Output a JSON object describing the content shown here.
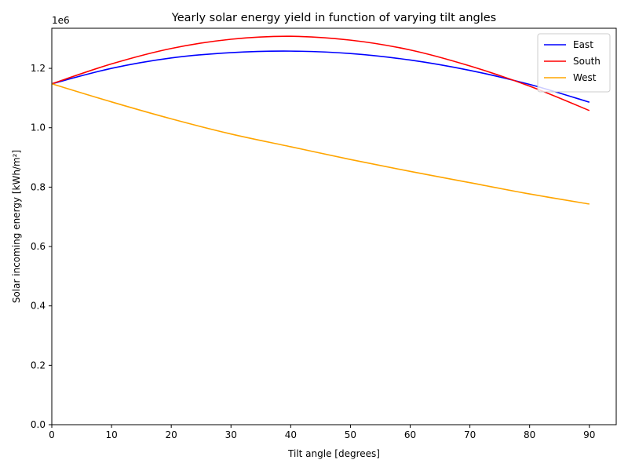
{
  "chart_data": {
    "type": "line",
    "title": "Yearly solar energy yield in function of varying tilt angles",
    "xlabel": "Tilt angle [degrees]",
    "ylabel": "Solar incoming energy [kWh/m²]",
    "y_offset_label": "1e6",
    "xlim": [
      0,
      94.5
    ],
    "ylim": [
      0,
      1335000
    ],
    "x_ticks": [
      0,
      10,
      20,
      30,
      40,
      50,
      60,
      70,
      80,
      90
    ],
    "x_tick_labels": [
      "0",
      "10",
      "20",
      "30",
      "40",
      "50",
      "60",
      "70",
      "80",
      "90"
    ],
    "y_ticks": [
      0,
      200000,
      400000,
      600000,
      800000,
      1000000,
      1200000
    ],
    "y_tick_labels": [
      "0.0",
      "0.2",
      "0.4",
      "0.6",
      "0.8",
      "1.0",
      "1.2"
    ],
    "grid": false,
    "legend_position": "top-right",
    "x": [
      0,
      10,
      20,
      30,
      40,
      50,
      60,
      70,
      80,
      90
    ],
    "series": [
      {
        "name": "East",
        "color": "#0000ff",
        "values": [
          1148000,
          1200000,
          1235000,
          1253000,
          1258000,
          1250000,
          1228000,
          1193000,
          1146000,
          1086000
        ]
      },
      {
        "name": "South",
        "color": "#ff0000",
        "values": [
          1148000,
          1215000,
          1267000,
          1298000,
          1308000,
          1295000,
          1262000,
          1208000,
          1140000,
          1058000
        ]
      },
      {
        "name": "West",
        "color": "#ffa500",
        "values": [
          1148000,
          1087000,
          1030000,
          979000,
          936000,
          893000,
          853000,
          815000,
          777000,
          743000
        ]
      }
    ]
  }
}
